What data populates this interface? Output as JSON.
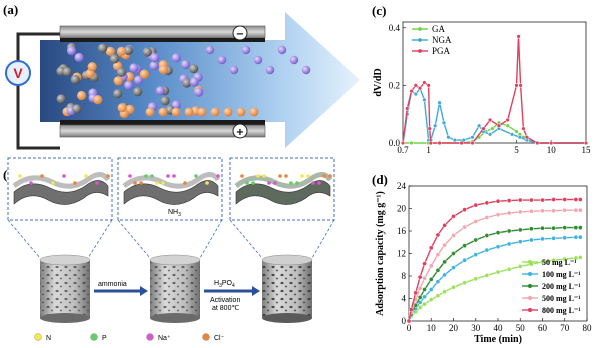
{
  "panels": {
    "a": {
      "label": "(a)",
      "voltage_symbol": "V",
      "minus_symbol": "⊖",
      "plus_symbol": "⊕"
    },
    "b": {
      "label": "(b)",
      "step1_label": "ammonia",
      "step2_label_1": "H",
      "step2_sub_1": "3",
      "step2_label_2": "PO",
      "step2_sub_2": "4",
      "step2_label_3": "Activation",
      "step2_label_4": "at 800℃",
      "nh3_label": "NH",
      "nh3_sub": "3",
      "legend": [
        {
          "symbol": "N",
          "color": "#f2e94e"
        },
        {
          "symbol": "P",
          "color": "#5fcf6a"
        },
        {
          "symbol": "Na⁺",
          "color": "#d957c8"
        },
        {
          "symbol": "Cl⁻",
          "color": "#e7853a"
        }
      ]
    }
  },
  "chart_data": [
    {
      "panel_label": "(c)",
      "type": "line",
      "xlabel": "",
      "ylabel": "dV/dD",
      "x_ticks": [
        "0.7",
        "1",
        "5",
        "10",
        "15"
      ],
      "y_ticks": [
        "0.0",
        "0.2",
        "0.4"
      ],
      "xlim": [
        0.7,
        15
      ],
      "ylim": [
        0,
        0.42
      ],
      "legend_position": "top-left",
      "series": [
        {
          "name": "GA",
          "color": "#6fd34a",
          "x": [
            0.7,
            0.8,
            1.0,
            1.5,
            2.5,
            3.0,
            3.3,
            3.6,
            3.9,
            4.2,
            4.6,
            5.0,
            5.5,
            6.0,
            6.5,
            8,
            10,
            15
          ],
          "y": [
            0.0,
            0.0,
            0.0,
            0.0,
            0.0,
            0.005,
            0.02,
            0.04,
            0.05,
            0.07,
            0.06,
            0.04,
            0.03,
            0.02,
            0.01,
            0.0,
            0.0,
            0.0
          ]
        },
        {
          "name": "NGA",
          "color": "#3fa9d8",
          "x": [
            0.7,
            0.75,
            0.8,
            0.85,
            0.9,
            0.95,
            1.0,
            1.1,
            1.3,
            1.5,
            1.7,
            1.9,
            2.2,
            2.6,
            3.0,
            3.3,
            3.5,
            3.8,
            4.2,
            4.8,
            5.5,
            6.5,
            8,
            10,
            15
          ],
          "y": [
            0.0,
            0.1,
            0.18,
            0.17,
            0.19,
            0.15,
            0.01,
            0.01,
            0.06,
            0.14,
            0.07,
            0.02,
            0.01,
            0.01,
            0.02,
            0.06,
            0.04,
            0.03,
            0.05,
            0.03,
            0.02,
            0.01,
            0.0,
            0.0,
            0.0
          ]
        },
        {
          "name": "PGA",
          "color": "#e0405f",
          "x": [
            0.7,
            0.75,
            0.8,
            0.85,
            0.9,
            0.95,
            1.0,
            1.05,
            1.1,
            1.5,
            2.5,
            3.0,
            3.5,
            3.8,
            4.2,
            4.6,
            5.0,
            5.3,
            5.6,
            6.0,
            6.5,
            8,
            10,
            15
          ],
          "y": [
            0.0,
            0.12,
            0.18,
            0.2,
            0.19,
            0.21,
            0.2,
            0.05,
            0.0,
            0.0,
            0.0,
            0.0,
            0.05,
            0.08,
            0.06,
            0.08,
            0.2,
            0.37,
            0.2,
            0.05,
            0.02,
            0.0,
            0.0,
            0.0
          ]
        }
      ]
    },
    {
      "panel_label": "(d)",
      "type": "line",
      "xlabel": "Time (min)",
      "ylabel": "Adsorption capacity (mg g⁻¹)",
      "x_ticks": [
        "0",
        "10",
        "20",
        "30",
        "40",
        "50",
        "60",
        "70",
        "80"
      ],
      "y_ticks": [
        "0",
        "4",
        "8",
        "12",
        "16",
        "20",
        "24"
      ],
      "xlim": [
        0,
        80
      ],
      "ylim": [
        0,
        24
      ],
      "legend_position": "bottom-right",
      "series": [
        {
          "name": "50 mg L⁻¹",
          "color": "#9be25a",
          "x": [
            0,
            1,
            3,
            5,
            7,
            10,
            13,
            16,
            20,
            25,
            30,
            35,
            40,
            45,
            50,
            55,
            60,
            65,
            70,
            75,
            77
          ],
          "y": [
            0,
            0.8,
            1.6,
            2.4,
            3.0,
            3.8,
            4.5,
            5.2,
            6.0,
            6.8,
            7.5,
            8.1,
            8.7,
            9.2,
            9.7,
            10.1,
            10.5,
            10.8,
            11.0,
            11.2,
            11.3
          ]
        },
        {
          "name": "100 mg L⁻¹",
          "color": "#3fb3e0",
          "x": [
            0,
            1,
            3,
            5,
            7,
            10,
            13,
            16,
            20,
            25,
            30,
            35,
            40,
            45,
            50,
            55,
            60,
            65,
            70,
            75,
            77
          ],
          "y": [
            0,
            1.0,
            2.2,
            3.3,
            4.3,
            5.6,
            7.0,
            8.2,
            9.5,
            10.8,
            11.8,
            12.6,
            13.2,
            13.7,
            14.1,
            14.4,
            14.6,
            14.7,
            14.8,
            14.9,
            14.9
          ]
        },
        {
          "name": "200 mg L⁻¹",
          "color": "#2e8b2e",
          "x": [
            0,
            1,
            3,
            5,
            7,
            10,
            13,
            16,
            20,
            25,
            30,
            35,
            40,
            45,
            50,
            55,
            60,
            65,
            70,
            75,
            77
          ],
          "y": [
            0,
            1.2,
            2.8,
            4.2,
            5.6,
            7.4,
            9.0,
            10.5,
            12.0,
            13.4,
            14.4,
            15.2,
            15.7,
            16.0,
            16.2,
            16.4,
            16.5,
            16.5,
            16.6,
            16.6,
            16.6
          ]
        },
        {
          "name": "500 mg L⁻¹",
          "color": "#f2a6ad",
          "x": [
            0,
            1,
            3,
            5,
            7,
            10,
            13,
            16,
            20,
            25,
            30,
            35,
            40,
            45,
            50,
            55,
            60,
            65,
            70,
            75,
            77
          ],
          "y": [
            0,
            1.6,
            3.8,
            5.8,
            7.6,
            9.8,
            11.8,
            13.5,
            15.2,
            16.7,
            17.7,
            18.4,
            18.9,
            19.2,
            19.4,
            19.5,
            19.6,
            19.6,
            19.7,
            19.7,
            19.7
          ]
        },
        {
          "name": "800 mg L⁻¹",
          "color": "#e0405f",
          "x": [
            0,
            1,
            3,
            5,
            7,
            10,
            13,
            16,
            20,
            25,
            30,
            35,
            40,
            45,
            50,
            55,
            60,
            65,
            70,
            75,
            77
          ],
          "y": [
            0,
            2.0,
            5.0,
            7.8,
            10.2,
            13.0,
            15.3,
            17.0,
            18.6,
            19.8,
            20.6,
            21.0,
            21.3,
            21.4,
            21.5,
            21.5,
            21.5,
            21.6,
            21.6,
            21.6,
            21.6
          ]
        }
      ]
    }
  ]
}
